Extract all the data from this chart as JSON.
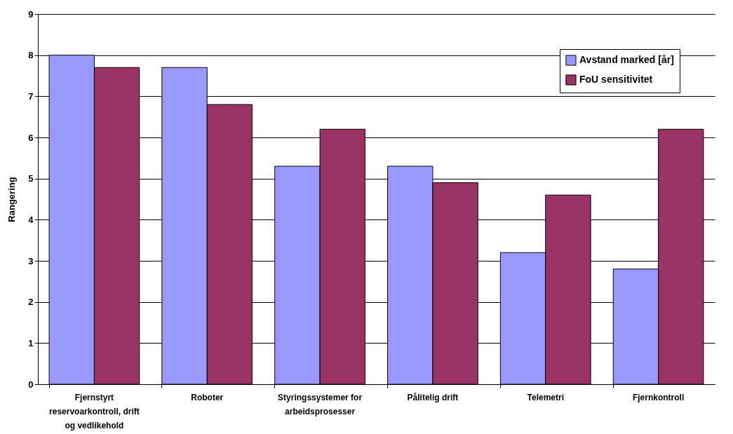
{
  "chart_data": {
    "type": "bar",
    "ylabel": "Rangering",
    "categories": [
      "Fjernstyrt reservoarkontroll, drift og vedlikehold",
      "Roboter",
      "Styringssystemer for arbeidsprosesser",
      "Pålitelig drift",
      "Telemetri",
      "Fjernkontroll"
    ],
    "series": [
      {
        "name": "Avstand marked [år]",
        "color": "#9999ff",
        "values": [
          8.0,
          7.7,
          5.3,
          5.3,
          3.2,
          2.8
        ]
      },
      {
        "name": "FoU sensitivitet",
        "color": "#993366",
        "values": [
          7.7,
          6.8,
          6.2,
          4.9,
          4.6,
          6.2
        ]
      }
    ],
    "ylim": [
      0,
      9
    ],
    "yticks": [
      0,
      1,
      2,
      3,
      4,
      5,
      6,
      7,
      8,
      9
    ],
    "grid": "y",
    "legend": "top right"
  }
}
